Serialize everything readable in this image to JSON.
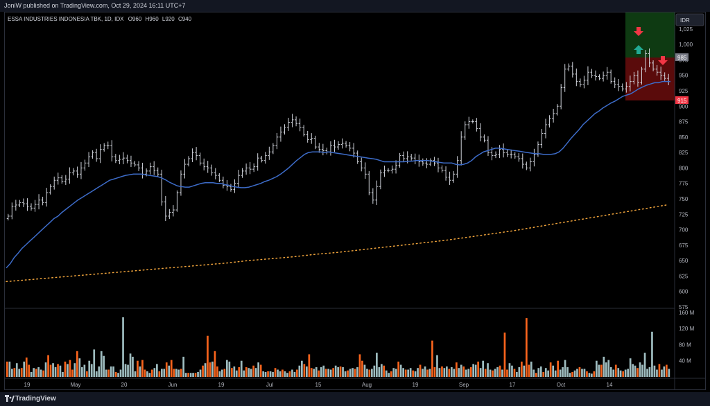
{
  "header": {
    "publisher_line": "JoniW published on TradingView.com, Oct 29, 2024 16:11 UTC+7"
  },
  "footer": {
    "brand": "TradingView"
  },
  "chart_data": {
    "type": "ohlc",
    "symbol_line": "ESSA INDUSTRIES INDONESIA TBK, 1D, IDX",
    "ohlc_readout": {
      "o_label": "O",
      "o": "960",
      "h_label": "H",
      "h": "960",
      "l_label": "L",
      "l": "920",
      "c_label": "C",
      "c": "940"
    },
    "currency": "IDR",
    "price_axis": {
      "ylim": [
        575,
        1045
      ],
      "ticks": [
        "1,025",
        "1,000",
        "975",
        "950",
        "925",
        "900",
        "875",
        "850",
        "825",
        "800",
        "775",
        "750",
        "725",
        "700",
        "675",
        "650",
        "625",
        "600",
        "575"
      ]
    },
    "volume_axis": {
      "ylim": [
        0,
        165
      ],
      "ticks": [
        "160 M",
        "120 M",
        "80 M",
        "40 M"
      ]
    },
    "x_labels": [
      "19",
      "May",
      "20",
      "Jun",
      "19",
      "Jul",
      "15",
      "Aug",
      "19",
      "Sep",
      "17",
      "Oct",
      "14"
    ],
    "price_labels": {
      "upper": "985",
      "lower": "915"
    },
    "colors": {
      "up_bar": "#d1d4dc",
      "down_bar": "#d1d4dc",
      "vol_up": "#9ebcbf",
      "vol_down": "#f7631c",
      "ma_short": "#3d6cc9",
      "ma_long": "#f0a43c",
      "zone_green": "#0e3a12",
      "zone_red": "#5a0b0b",
      "label_grey": "#787b86",
      "label_red": "#f23645",
      "arrow_red": "#f23645",
      "arrow_green": "#22ab94"
    },
    "series": [
      {
        "name": "close",
        "values": [
          722,
          738,
          740,
          744,
          742,
          738,
          735,
          741,
          748,
          744,
          760,
          770,
          780,
          784,
          778,
          782,
          792,
          795,
          790,
          800,
          808,
          818,
          825,
          815,
          830,
          836,
          836,
          818,
          812,
          814,
          816,
          812,
          808,
          805,
          800,
          790,
          795,
          802,
          796,
          790,
          745,
          722,
          728,
          732,
          760,
          790,
          806,
          815,
          825,
          820,
          808,
          802,
          800,
          792,
          788,
          780,
          772,
          770,
          765,
          775,
          788,
          795,
          800,
          798,
          802,
          816,
          812,
          820,
          826,
          836,
          850,
          858,
          866,
          874,
          878,
          872,
          866,
          854,
          846,
          848,
          834,
          830,
          828,
          826,
          836,
          834,
          838,
          840,
          836,
          832,
          824,
          810,
          800,
          790,
          760,
          748,
          770,
          792,
          796,
          796,
          798,
          804,
          820,
          815,
          818,
          816,
          812,
          810,
          808,
          806,
          812,
          808,
          800,
          796,
          785,
          780,
          790,
          812,
          850,
          870,
          875,
          875,
          864,
          850,
          845,
          825,
          820,
          822,
          830,
          825,
          822,
          822,
          818,
          815,
          806,
          800,
          810,
          822,
          838,
          856,
          870,
          880,
          888,
          900,
          930,
          960,
          965,
          952,
          940,
          935,
          942,
          955,
          950,
          948,
          945,
          950,
          955,
          940,
          935,
          932,
          928,
          932,
          940,
          950,
          938,
          960,
          985,
          970,
          960,
          955,
          950,
          945,
          940
        ]
      },
      {
        "name": "ma_short",
        "values": [
          638,
          645,
          655,
          662,
          670,
          676,
          682,
          688,
          694,
          700,
          706,
          712,
          718,
          722,
          728,
          733,
          738,
          743,
          748,
          752,
          756,
          760,
          764,
          768,
          772,
          776,
          780,
          782,
          784,
          786,
          788,
          789,
          790,
          790,
          790,
          789,
          788,
          787,
          786,
          784,
          781,
          777,
          774,
          771,
          770,
          769,
          769,
          771,
          773,
          775,
          776,
          776,
          776,
          775,
          775,
          773,
          772,
          770,
          769,
          768,
          768,
          769,
          771,
          773,
          775,
          778,
          780,
          783,
          786,
          790,
          795,
          800,
          806,
          812,
          817,
          822,
          825,
          826,
          826,
          826,
          825,
          826,
          825,
          824,
          823,
          822,
          821,
          820,
          819,
          818,
          817,
          816,
          815,
          814,
          812,
          810,
          810,
          810,
          810,
          810,
          810,
          811,
          811,
          812,
          812,
          812,
          812,
          811,
          810,
          809,
          808,
          808,
          808,
          806,
          805,
          806,
          808,
          812,
          818,
          822,
          826,
          828,
          830,
          832,
          832,
          831,
          830,
          829,
          828,
          827,
          826,
          825,
          824,
          823,
          823,
          822,
          822,
          822,
          823,
          826,
          832,
          840,
          848,
          855,
          862,
          870,
          876,
          882,
          888,
          892,
          897,
          901,
          905,
          908,
          912,
          916,
          918,
          920,
          924,
          928,
          931,
          934,
          936,
          938,
          938,
          940,
          940,
          940
        ]
      },
      {
        "name": "ma_long",
        "values": [
          616,
          619,
          622,
          625,
          628,
          631,
          634,
          637,
          640,
          643,
          646,
          650,
          653,
          656,
          660,
          663,
          667,
          671,
          675,
          679,
          683,
          688,
          693,
          698,
          704,
          710,
          716,
          722,
          728,
          734,
          740
        ]
      }
    ],
    "volume": [
      38,
      38,
      20,
      22,
      34,
      20,
      22,
      38,
      48,
      30,
      12,
      22,
      20,
      24,
      18,
      16,
      36,
      54,
      30,
      34,
      24,
      32,
      28,
      12,
      38,
      32,
      42,
      18,
      34,
      64,
      46,
      24,
      30,
      14,
      40,
      32,
      68,
      14,
      26,
      64,
      52,
      18,
      18,
      26,
      26,
      12,
      10,
      18,
      148,
      32,
      30,
      58,
      50,
      14,
      40,
      26,
      42,
      18,
      14,
      10,
      18,
      22,
      32,
      14,
      20,
      20,
      36,
      28,
      42,
      20,
      20,
      18,
      20,
      50,
      10,
      10,
      10,
      10,
      10,
      12,
      18,
      28,
      34,
      102,
      36,
      38,
      64,
      26,
      14,
      18,
      20,
      42,
      38,
      22,
      26,
      16,
      24,
      40,
      16,
      24,
      22,
      20,
      28,
      22,
      36,
      30,
      14,
      12,
      14,
      14,
      12,
      22,
      18,
      14,
      18,
      14,
      10,
      14,
      18,
      12,
      18,
      28,
      40,
      32,
      26,
      56,
      22,
      20,
      24,
      16,
      24,
      28,
      20,
      20,
      18,
      22,
      28,
      24,
      26,
      24,
      14,
      16,
      20,
      22,
      20,
      24,
      56,
      40,
      30,
      20,
      18,
      20,
      28,
      60,
      24,
      32,
      28,
      16,
      10,
      14,
      22,
      20,
      38,
      30,
      22,
      18,
      18,
      22,
      16,
      14,
      22,
      30,
      20,
      26,
      18,
      20,
      90,
      24,
      54,
      22,
      26,
      22,
      26,
      20,
      24,
      20,
      36,
      22,
      30,
      26,
      18,
      20,
      24,
      32,
      30,
      38,
      22,
      40,
      20,
      34,
      18,
      16,
      20,
      24,
      28,
      18,
      110,
      18,
      34,
      28,
      20,
      12,
      24,
      38,
      28,
      146,
      30,
      38,
      18,
      10,
      22,
      26,
      12,
      22,
      16,
      36,
      28,
      16,
      40,
      18,
      24,
      42,
      24,
      10,
      12,
      16,
      20,
      24,
      20,
      20,
      14,
      10,
      8,
      14,
      40,
      30,
      30,
      50,
      36,
      42,
      24,
      18,
      30,
      22,
      16,
      14,
      18,
      20,
      46,
      32,
      28,
      22,
      36,
      30,
      60,
      20,
      24,
      112,
      28,
      18,
      32,
      18,
      26,
      30,
      20
    ]
  }
}
